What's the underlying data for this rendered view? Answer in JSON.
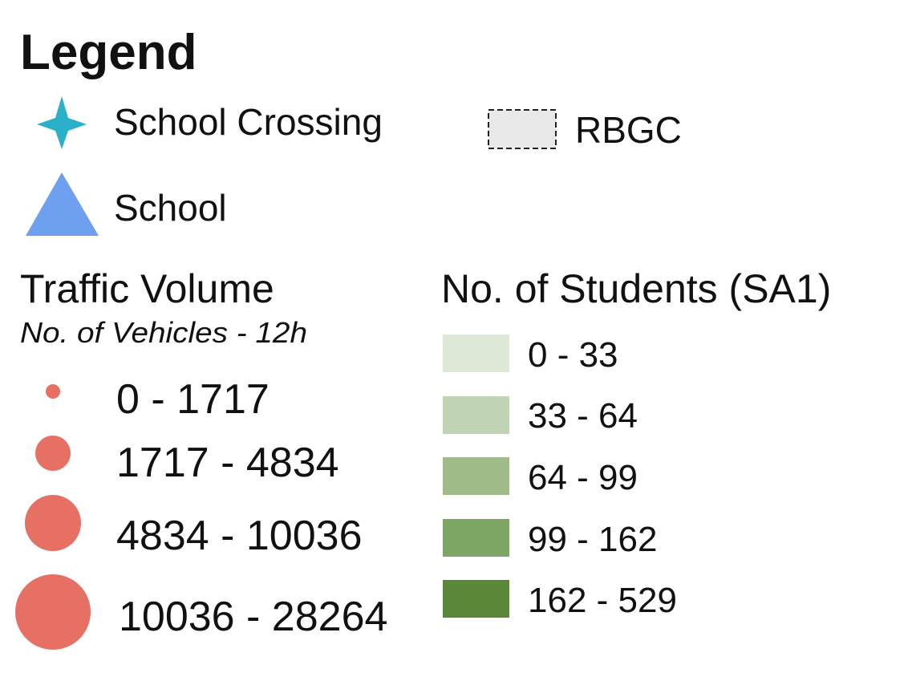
{
  "legend": {
    "title": "Legend",
    "symbols": [
      {
        "label": "School Crossing"
      },
      {
        "label": "RBGC"
      },
      {
        "label": "School"
      }
    ],
    "traffic_volume": {
      "title": "Traffic Volume",
      "subtitle": "No. of Vehicles - 12h",
      "items": [
        "0 - 1717",
        "1717 - 4834",
        "4834 - 10036",
        "10036 - 28264"
      ]
    },
    "students": {
      "title": "No. of Students (SA1)",
      "items": [
        "0 - 33",
        "33 - 64",
        "64 - 99",
        "99 - 162",
        "162 - 529"
      ]
    }
  }
}
